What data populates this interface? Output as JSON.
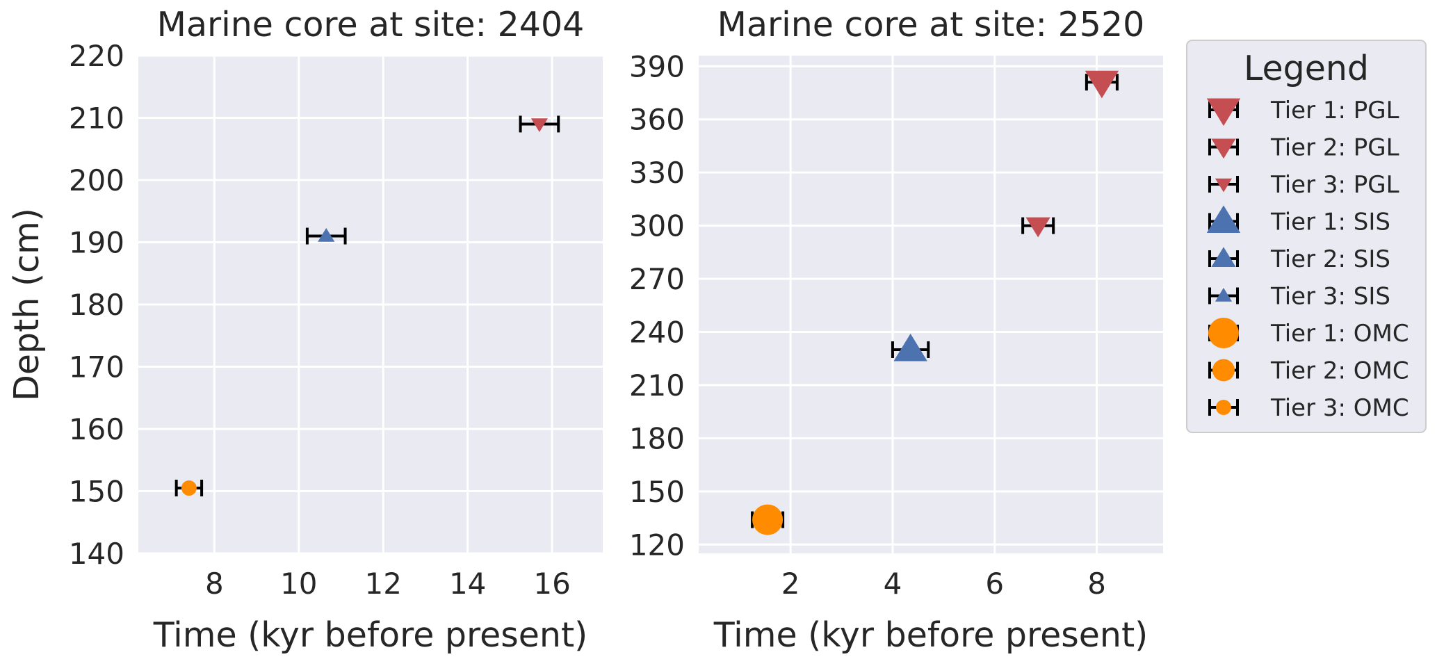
{
  "chart_data": [
    {
      "type": "scatter",
      "title": "Marine core at site: 2404",
      "xlabel": "Time (kyr before present)",
      "ylabel": "Depth (cm)",
      "xlim": [
        6.2,
        17.2
      ],
      "ylim": [
        140,
        220
      ],
      "xticks": [
        8,
        10,
        12,
        14,
        16
      ],
      "yticks": [
        140,
        150,
        160,
        170,
        180,
        190,
        200,
        210,
        220
      ],
      "grid": true,
      "points": [
        {
          "series": "Tier 3: PGL",
          "x": 15.7,
          "y": 209,
          "xerr": 0.45
        },
        {
          "series": "Tier 3: SIS",
          "x": 10.65,
          "y": 191,
          "xerr": 0.45
        },
        {
          "series": "Tier 3: OMC",
          "x": 7.4,
          "y": 150.5,
          "xerr": 0.3
        }
      ]
    },
    {
      "type": "scatter",
      "title": "Marine core at site: 2520",
      "xlabel": "Time (kyr before present)",
      "ylabel": "",
      "xlim": [
        0.2,
        9.3
      ],
      "ylim": [
        115,
        396
      ],
      "xticks": [
        2,
        4,
        6,
        8
      ],
      "yticks": [
        120,
        150,
        180,
        210,
        240,
        270,
        300,
        330,
        360,
        390
      ],
      "grid": true,
      "points": [
        {
          "series": "Tier 1: PGL",
          "x": 8.1,
          "y": 381,
          "xerr": 0.3
        },
        {
          "series": "Tier 2: PGL",
          "x": 6.85,
          "y": 300,
          "xerr": 0.3
        },
        {
          "series": "Tier 1: SIS",
          "x": 4.35,
          "y": 230,
          "xerr": 0.35
        },
        {
          "series": "Tier 1: OMC",
          "x": 1.55,
          "y": 134,
          "xerr": 0.3
        }
      ]
    }
  ],
  "legend": {
    "title": "Legend",
    "placement": "right",
    "entries": [
      {
        "label": "Tier 1: PGL",
        "marker": "triangle-down",
        "color": "#c44e52",
        "size": 3
      },
      {
        "label": "Tier 2: PGL",
        "marker": "triangle-down",
        "color": "#c44e52",
        "size": 2
      },
      {
        "label": "Tier 3: PGL",
        "marker": "triangle-down",
        "color": "#c44e52",
        "size": 1
      },
      {
        "label": "Tier 1: SIS",
        "marker": "triangle-up",
        "color": "#4c72b0",
        "size": 3
      },
      {
        "label": "Tier 2: SIS",
        "marker": "triangle-up",
        "color": "#4c72b0",
        "size": 2
      },
      {
        "label": "Tier 3: SIS",
        "marker": "triangle-up",
        "color": "#4c72b0",
        "size": 1
      },
      {
        "label": "Tier 1: OMC",
        "marker": "circle",
        "color": "#ff8c00",
        "size": 3
      },
      {
        "label": "Tier 2: OMC",
        "marker": "circle",
        "color": "#ff8c00",
        "size": 2
      },
      {
        "label": "Tier 3: OMC",
        "marker": "circle",
        "color": "#ff8c00",
        "size": 1
      }
    ]
  },
  "colors": {
    "PGL": "#c44e52",
    "SIS": "#4c72b0",
    "OMC": "#ff8c00",
    "axes_background": "#eaeaf2",
    "grid": "#ffffff",
    "errorbar": "#000000"
  }
}
